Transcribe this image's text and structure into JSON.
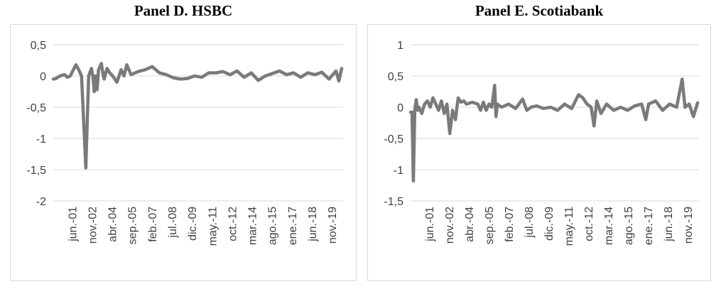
{
  "chart_data": [
    {
      "type": "line",
      "title": "Panel D. HSBC",
      "ylim": [
        -2,
        0.5
      ],
      "yticks": [
        0.5,
        0,
        -0.5,
        -1,
        -1.5,
        -2
      ],
      "ytick_labels": [
        "0,5",
        "0",
        "-0,5",
        "-1",
        "-1,5",
        "-2"
      ],
      "xtick_labels": [
        "jun.-01",
        "nov.-02",
        "abr.-04",
        "sep.-05",
        "feb.-07",
        "jul.-08",
        "dic.-09",
        "may.-11",
        "oct.-12",
        "mar.-14",
        "ago.-15",
        "ene.-17",
        "jun.-18",
        "nov.-19"
      ],
      "grid": true,
      "series": [
        {
          "color": "#7a7a7a",
          "points": [
            [
              0,
              -0.05
            ],
            [
              0.2,
              -0.04
            ],
            [
              0.4,
              -0.01
            ],
            [
              0.6,
              0.01
            ],
            [
              0.8,
              0.02
            ],
            [
              1.0,
              -0.02
            ],
            [
              1.2,
              0.0
            ],
            [
              1.6,
              0.18
            ],
            [
              1.8,
              0.1
            ],
            [
              2.0,
              0.0
            ],
            [
              2.3,
              -1.47
            ],
            [
              2.5,
              0.0
            ],
            [
              2.7,
              0.12
            ],
            [
              2.8,
              0.0
            ],
            [
              2.9,
              -0.25
            ],
            [
              3.0,
              0.0
            ],
            [
              3.1,
              -0.22
            ],
            [
              3.2,
              0.1
            ],
            [
              3.4,
              0.2
            ],
            [
              3.5,
              0.05
            ],
            [
              3.6,
              -0.05
            ],
            [
              3.8,
              0.12
            ],
            [
              4.0,
              0.05
            ],
            [
              4.2,
              0.0
            ],
            [
              4.5,
              -0.1
            ],
            [
              4.8,
              0.1
            ],
            [
              5.0,
              0.0
            ],
            [
              5.2,
              0.18
            ],
            [
              5.5,
              0.02
            ],
            [
              6.0,
              0.07
            ],
            [
              6.5,
              0.1
            ],
            [
              7.0,
              0.15
            ],
            [
              7.5,
              0.05
            ],
            [
              8.0,
              0.02
            ],
            [
              8.5,
              -0.03
            ],
            [
              9.0,
              -0.05
            ],
            [
              9.5,
              -0.04
            ],
            [
              10.0,
              0.0
            ],
            [
              10.5,
              -0.02
            ],
            [
              11.0,
              0.05
            ],
            [
              11.5,
              0.05
            ],
            [
              12.0,
              0.07
            ],
            [
              12.5,
              0.02
            ],
            [
              13.0,
              0.08
            ],
            [
              13.5,
              -0.02
            ],
            [
              14.0,
              0.05
            ],
            [
              14.5,
              -0.07
            ],
            [
              15.0,
              0.0
            ],
            [
              15.5,
              0.04
            ],
            [
              16.0,
              0.08
            ],
            [
              16.5,
              0.02
            ],
            [
              17.0,
              0.05
            ],
            [
              17.5,
              -0.02
            ],
            [
              18.0,
              0.05
            ],
            [
              18.5,
              0.02
            ],
            [
              19.0,
              0.06
            ],
            [
              19.5,
              -0.05
            ],
            [
              20.0,
              0.08
            ],
            [
              20.2,
              -0.08
            ],
            [
              20.4,
              0.12
            ]
          ]
        }
      ]
    },
    {
      "type": "line",
      "title": "Panel E. Scotiabank",
      "ylim": [
        -1.5,
        1
      ],
      "yticks": [
        1,
        0.5,
        0,
        -0.5,
        -1,
        -1.5
      ],
      "ytick_labels": [
        "1",
        "0,5",
        "0",
        "-0,5",
        "-1",
        "-1,5"
      ],
      "xtick_labels": [
        "jun.-01",
        "nov.-02",
        "abr.-04",
        "sep.-05",
        "feb.-07",
        "jul.-08",
        "dic.-09",
        "may.-11",
        "oct.-12",
        "mar.-14",
        "ago.-15",
        "ene.-17",
        "jun.-18",
        "nov.-19"
      ],
      "grid": true,
      "series": [
        {
          "color": "#7a7a7a",
          "points": [
            [
              0,
              -0.08
            ],
            [
              0.1,
              -0.08
            ],
            [
              0.2,
              -1.18
            ],
            [
              0.3,
              -0.05
            ],
            [
              0.4,
              0.12
            ],
            [
              0.5,
              -0.05
            ],
            [
              0.6,
              0.0
            ],
            [
              0.8,
              -0.1
            ],
            [
              1.0,
              0.05
            ],
            [
              1.2,
              0.1
            ],
            [
              1.4,
              0.0
            ],
            [
              1.6,
              0.15
            ],
            [
              1.8,
              0.05
            ],
            [
              2.0,
              -0.05
            ],
            [
              2.2,
              0.1
            ],
            [
              2.4,
              -0.1
            ],
            [
              2.6,
              0.05
            ],
            [
              2.8,
              -0.42
            ],
            [
              3.0,
              -0.05
            ],
            [
              3.2,
              -0.2
            ],
            [
              3.4,
              0.15
            ],
            [
              3.6,
              0.08
            ],
            [
              3.8,
              0.1
            ],
            [
              4.0,
              0.05
            ],
            [
              4.4,
              0.08
            ],
            [
              4.8,
              0.05
            ],
            [
              5.0,
              -0.05
            ],
            [
              5.2,
              0.08
            ],
            [
              5.4,
              -0.05
            ],
            [
              5.6,
              0.05
            ],
            [
              5.8,
              0.0
            ],
            [
              6.0,
              0.35
            ],
            [
              6.1,
              -0.15
            ],
            [
              6.2,
              0.05
            ],
            [
              6.5,
              0.0
            ],
            [
              7.0,
              0.05
            ],
            [
              7.5,
              -0.02
            ],
            [
              8.0,
              0.13
            ],
            [
              8.3,
              -0.05
            ],
            [
              8.6,
              0.0
            ],
            [
              9.0,
              0.02
            ],
            [
              9.5,
              -0.02
            ],
            [
              10.0,
              0.0
            ],
            [
              10.5,
              -0.05
            ],
            [
              11.0,
              0.05
            ],
            [
              11.5,
              -0.02
            ],
            [
              12.0,
              0.2
            ],
            [
              12.3,
              0.15
            ],
            [
              12.6,
              0.05
            ],
            [
              12.9,
              0.0
            ],
            [
              13.1,
              -0.3
            ],
            [
              13.3,
              0.1
            ],
            [
              13.6,
              -0.1
            ],
            [
              14.0,
              0.05
            ],
            [
              14.5,
              -0.05
            ],
            [
              15.0,
              0.0
            ],
            [
              15.5,
              -0.05
            ],
            [
              16.0,
              0.02
            ],
            [
              16.5,
              0.05
            ],
            [
              16.8,
              -0.2
            ],
            [
              17.0,
              0.05
            ],
            [
              17.5,
              0.1
            ],
            [
              18.0,
              -0.05
            ],
            [
              18.5,
              0.05
            ],
            [
              19.0,
              0.0
            ],
            [
              19.4,
              0.45
            ],
            [
              19.6,
              0.0
            ],
            [
              19.9,
              0.05
            ],
            [
              20.2,
              -0.15
            ],
            [
              20.5,
              0.07
            ]
          ]
        }
      ]
    }
  ]
}
